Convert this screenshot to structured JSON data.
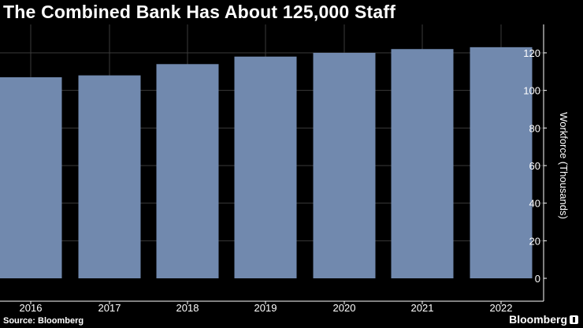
{
  "title": "The Combined Bank Has About 125,000 Staff",
  "source": "Source: Bloomberg",
  "brand": "Bloomberg",
  "chart_data": {
    "type": "bar",
    "categories": [
      "2016",
      "2017",
      "2018",
      "2019",
      "2020",
      "2021",
      "2022"
    ],
    "values": [
      107,
      108,
      114,
      118,
      120,
      122,
      123
    ],
    "ylabel": "Workforce (Thousands)",
    "xlabel": "",
    "ylim": [
      0,
      130
    ],
    "yticks": [
      0,
      20,
      40,
      60,
      80,
      100,
      120
    ],
    "grid": true,
    "y_axis_side": "right",
    "bar_color": "#7189AE",
    "grid_color": "#3A3A3A"
  }
}
